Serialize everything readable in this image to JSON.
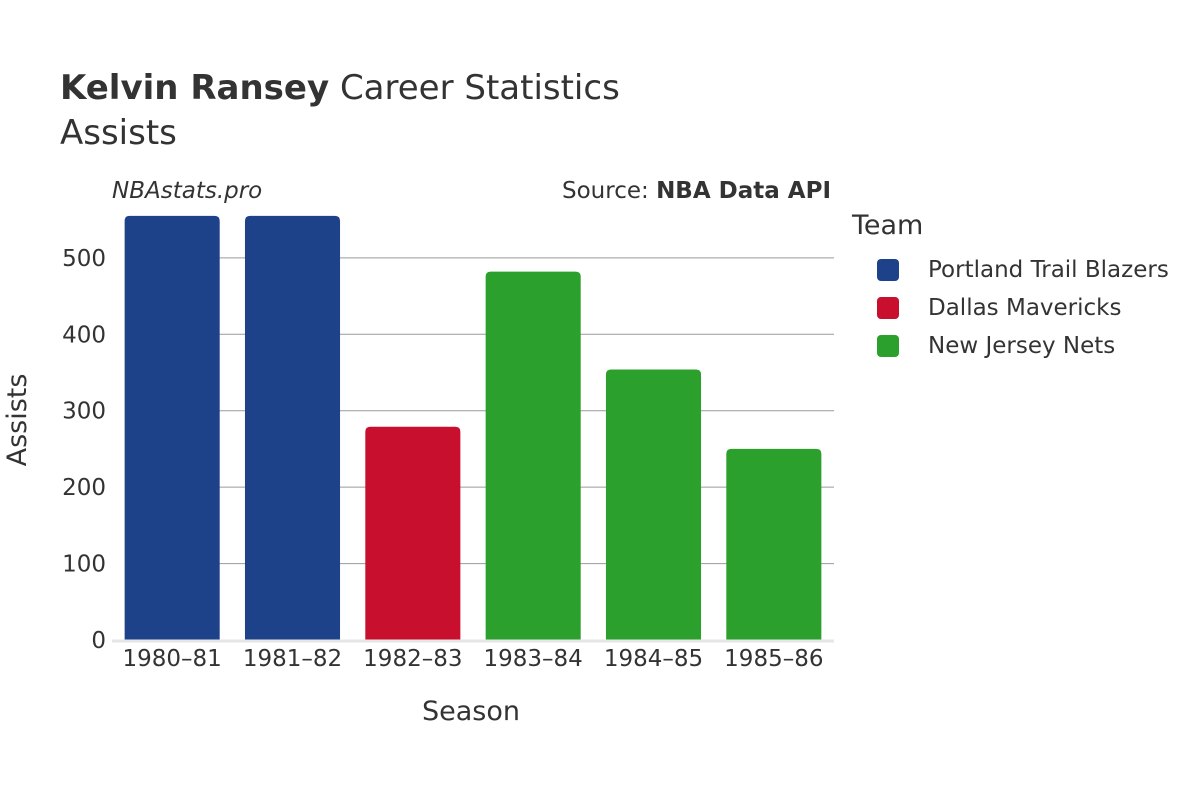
{
  "header": {
    "player_name": "Kelvin Ransey",
    "title_suffix": "Career Statistics",
    "subtitle": "Assists"
  },
  "watermark": "NBAstats.pro",
  "source": {
    "prefix": "Source:",
    "name": "NBA Data API"
  },
  "legend": {
    "title": "Team",
    "items": [
      {
        "label": "Portland Trail Blazers",
        "color": "#1d428a"
      },
      {
        "label": "Dallas Mavericks",
        "color": "#c8102e"
      },
      {
        "label": "New Jersey Nets",
        "color": "#2ca02c"
      }
    ]
  },
  "chart_data": {
    "type": "bar",
    "categories": [
      "1980–81",
      "1981–82",
      "1982–83",
      "1983–84",
      "1984–85",
      "1985–86"
    ],
    "values": [
      555,
      555,
      279,
      482,
      354,
      250
    ],
    "teams": [
      "Portland Trail Blazers",
      "Portland Trail Blazers",
      "Dallas Mavericks",
      "New Jersey Nets",
      "New Jersey Nets",
      "New Jersey Nets"
    ],
    "colors": [
      "#1d428a",
      "#1d428a",
      "#c8102e",
      "#2ca02c",
      "#2ca02c",
      "#2ca02c"
    ],
    "xlabel": "Season",
    "ylabel": "Assists",
    "ylim": [
      0,
      560
    ],
    "yticks": [
      0,
      100,
      200,
      300,
      400,
      500
    ],
    "grid": true,
    "legend_position": "right"
  }
}
